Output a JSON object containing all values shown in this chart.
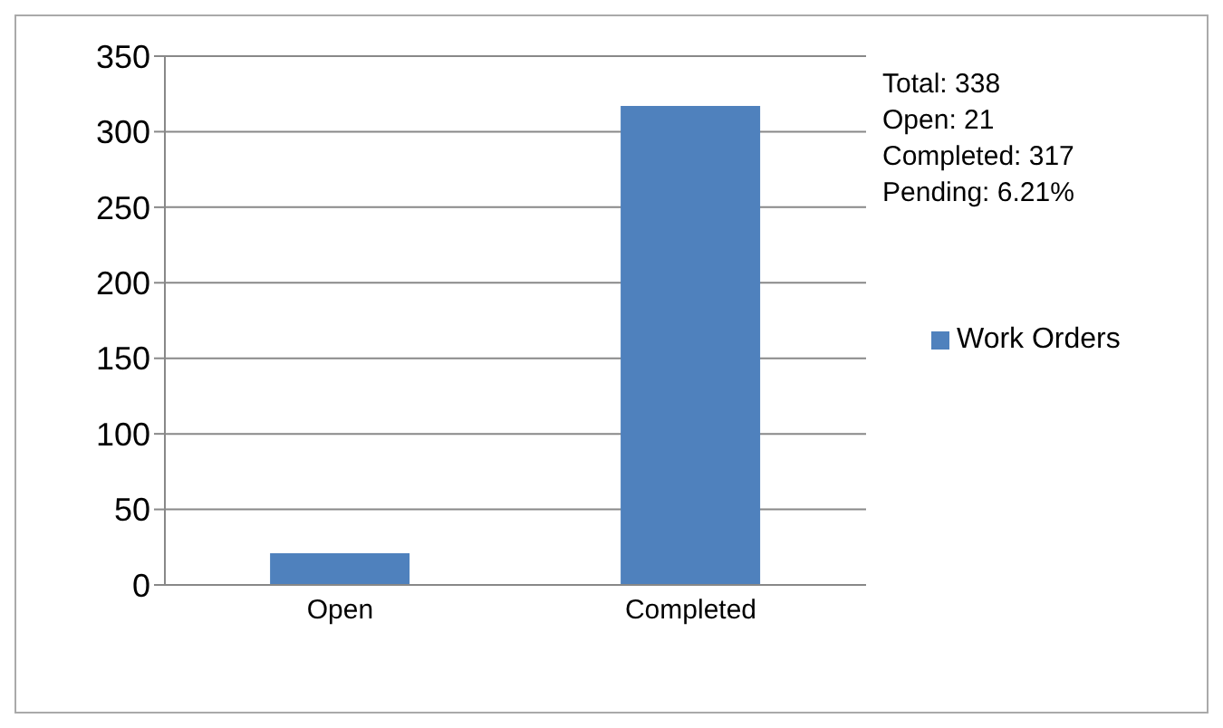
{
  "chart_data": {
    "type": "bar",
    "categories": [
      "Open",
      "Completed"
    ],
    "series": [
      {
        "name": "Work Orders",
        "color": "#4f81bd",
        "values": [
          21,
          317
        ]
      }
    ],
    "ylim": [
      0,
      350
    ],
    "yticks": [
      0,
      50,
      100,
      150,
      200,
      250,
      300,
      350
    ],
    "grid": "y",
    "legend": "right",
    "annotations": [
      "Total: 338",
      "Open: 21",
      "Completed: 317",
      "Pending: 6.21%"
    ]
  }
}
